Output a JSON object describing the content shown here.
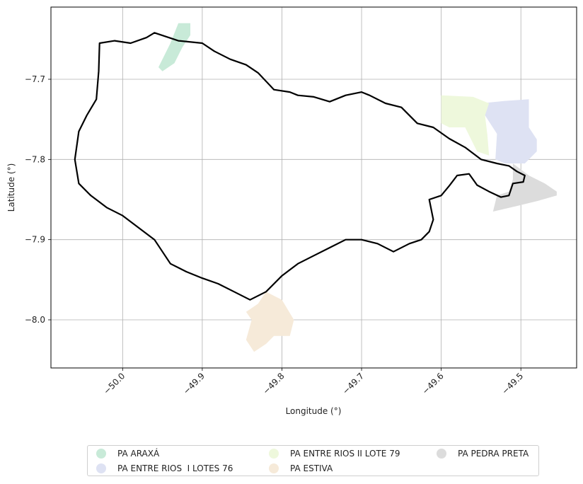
{
  "chart_data": {
    "type": "map",
    "xlabel": "Longitude (°)",
    "ylabel": "Latitude (°)",
    "xlim": [
      -50.09,
      -49.43
    ],
    "ylim": [
      -8.06,
      -7.61
    ],
    "xticks": [
      -50.0,
      -49.9,
      -49.8,
      -49.7,
      -49.6,
      -49.5
    ],
    "xtick_labels": [
      "−50.0",
      "−49.9",
      "−49.8",
      "−49.7",
      "−49.6",
      "−49.5"
    ],
    "yticks": [
      -7.7,
      -7.8,
      -7.9,
      -8.0
    ],
    "ytick_labels": [
      "−7.7",
      "−7.8",
      "−7.9",
      "−8.0"
    ],
    "grid": true,
    "legend_position": "bottom",
    "boundary": [
      [
        -50.03,
        -7.69
      ],
      [
        -50.029,
        -7.655
      ],
      [
        -50.01,
        -7.652
      ],
      [
        -49.99,
        -7.655
      ],
      [
        -49.97,
        -7.648
      ],
      [
        -49.96,
        -7.642
      ],
      [
        -49.93,
        -7.652
      ],
      [
        -49.9,
        -7.655
      ],
      [
        -49.885,
        -7.665
      ],
      [
        -49.865,
        -7.675
      ],
      [
        -49.845,
        -7.682
      ],
      [
        -49.83,
        -7.692
      ],
      [
        -49.81,
        -7.713
      ],
      [
        -49.79,
        -7.716
      ],
      [
        -49.78,
        -7.72
      ],
      [
        -49.76,
        -7.722
      ],
      [
        -49.74,
        -7.728
      ],
      [
        -49.72,
        -7.72
      ],
      [
        -49.7,
        -7.716
      ],
      [
        -49.69,
        -7.72
      ],
      [
        -49.67,
        -7.73
      ],
      [
        -49.65,
        -7.735
      ],
      [
        -49.63,
        -7.755
      ],
      [
        -49.61,
        -7.76
      ],
      [
        -49.59,
        -7.774
      ],
      [
        -49.57,
        -7.785
      ],
      [
        -49.55,
        -7.8
      ],
      [
        -49.53,
        -7.805
      ],
      [
        -49.515,
        -7.808
      ],
      [
        -49.505,
        -7.815
      ],
      [
        -49.495,
        -7.82
      ],
      [
        -49.497,
        -7.828
      ],
      [
        -49.51,
        -7.83
      ],
      [
        -49.515,
        -7.845
      ],
      [
        -49.525,
        -7.847
      ],
      [
        -49.54,
        -7.84
      ],
      [
        -49.555,
        -7.832
      ],
      [
        -49.565,
        -7.818
      ],
      [
        -49.58,
        -7.82
      ],
      [
        -49.59,
        -7.833
      ],
      [
        -49.6,
        -7.845
      ],
      [
        -49.615,
        -7.85
      ],
      [
        -49.61,
        -7.875
      ],
      [
        -49.615,
        -7.89
      ],
      [
        -49.625,
        -7.9
      ],
      [
        -49.64,
        -7.905
      ],
      [
        -49.66,
        -7.915
      ],
      [
        -49.68,
        -7.905
      ],
      [
        -49.7,
        -7.9
      ],
      [
        -49.72,
        -7.9
      ],
      [
        -49.74,
        -7.91
      ],
      [
        -49.76,
        -7.92
      ],
      [
        -49.78,
        -7.93
      ],
      [
        -49.8,
        -7.945
      ],
      [
        -49.82,
        -7.965
      ],
      [
        -49.84,
        -7.975
      ],
      [
        -49.86,
        -7.965
      ],
      [
        -49.88,
        -7.955
      ],
      [
        -49.9,
        -7.948
      ],
      [
        -49.92,
        -7.94
      ],
      [
        -49.94,
        -7.93
      ],
      [
        -49.96,
        -7.9
      ],
      [
        -49.98,
        -7.885
      ],
      [
        -50.0,
        -7.87
      ],
      [
        -50.02,
        -7.86
      ],
      [
        -50.04,
        -7.845
      ],
      [
        -50.055,
        -7.83
      ],
      [
        -50.06,
        -7.8
      ],
      [
        -50.055,
        -7.765
      ],
      [
        -50.045,
        -7.745
      ],
      [
        -50.033,
        -7.725
      ],
      [
        -50.03,
        -7.69
      ]
    ],
    "series": [
      {
        "name": "PA ARAXÁ",
        "color": "#c8ead8",
        "polygon": [
          [
            -49.95,
            -7.69
          ],
          [
            -49.935,
            -7.68
          ],
          [
            -49.925,
            -7.66
          ],
          [
            -49.915,
            -7.645
          ],
          [
            -49.915,
            -7.63
          ],
          [
            -49.93,
            -7.63
          ],
          [
            -49.94,
            -7.655
          ],
          [
            -49.955,
            -7.685
          ]
        ]
      },
      {
        "name": "PA ENTRE RIOS  I LOTES 76",
        "color": "#dee2f3",
        "polygon": [
          [
            -49.55,
            -7.73
          ],
          [
            -49.545,
            -7.745
          ],
          [
            -49.53,
            -7.768
          ],
          [
            -49.532,
            -7.8
          ],
          [
            -49.52,
            -7.805
          ],
          [
            -49.495,
            -7.805
          ],
          [
            -49.48,
            -7.79
          ],
          [
            -49.48,
            -7.775
          ],
          [
            -49.49,
            -7.76
          ],
          [
            -49.49,
            -7.725
          ],
          [
            -49.52,
            -7.727
          ]
        ]
      },
      {
        "name": "PA ENTRE RIOS II LOTE 79",
        "color": "#eef8dc",
        "polygon": [
          [
            -49.6,
            -7.72
          ],
          [
            -49.56,
            -7.722
          ],
          [
            -49.54,
            -7.73
          ],
          [
            -49.545,
            -7.745
          ],
          [
            -49.542,
            -7.77
          ],
          [
            -49.54,
            -7.795
          ],
          [
            -49.555,
            -7.79
          ],
          [
            -49.57,
            -7.76
          ],
          [
            -49.59,
            -7.76
          ],
          [
            -49.6,
            -7.755
          ]
        ]
      },
      {
        "name": "PA ESTIVA",
        "color": "#f6ead9",
        "polygon": [
          [
            -49.83,
            -7.98
          ],
          [
            -49.82,
            -7.965
          ],
          [
            -49.8,
            -7.975
          ],
          [
            -49.785,
            -8.0
          ],
          [
            -49.79,
            -8.02
          ],
          [
            -49.81,
            -8.02
          ],
          [
            -49.82,
            -8.03
          ],
          [
            -49.835,
            -8.04
          ],
          [
            -49.845,
            -8.025
          ],
          [
            -49.838,
            -8.0
          ],
          [
            -49.845,
            -7.99
          ]
        ]
      },
      {
        "name": "PA PEDRA PRETA",
        "color": "#dcdcdc",
        "polygon": [
          [
            -49.51,
            -7.805
          ],
          [
            -49.49,
            -7.82
          ],
          [
            -49.47,
            -7.83
          ],
          [
            -49.455,
            -7.84
          ],
          [
            -49.455,
            -7.845
          ],
          [
            -49.48,
            -7.852
          ],
          [
            -49.505,
            -7.858
          ],
          [
            -49.535,
            -7.865
          ],
          [
            -49.53,
            -7.845
          ],
          [
            -49.515,
            -7.84
          ],
          [
            -49.51,
            -7.825
          ]
        ]
      }
    ]
  }
}
